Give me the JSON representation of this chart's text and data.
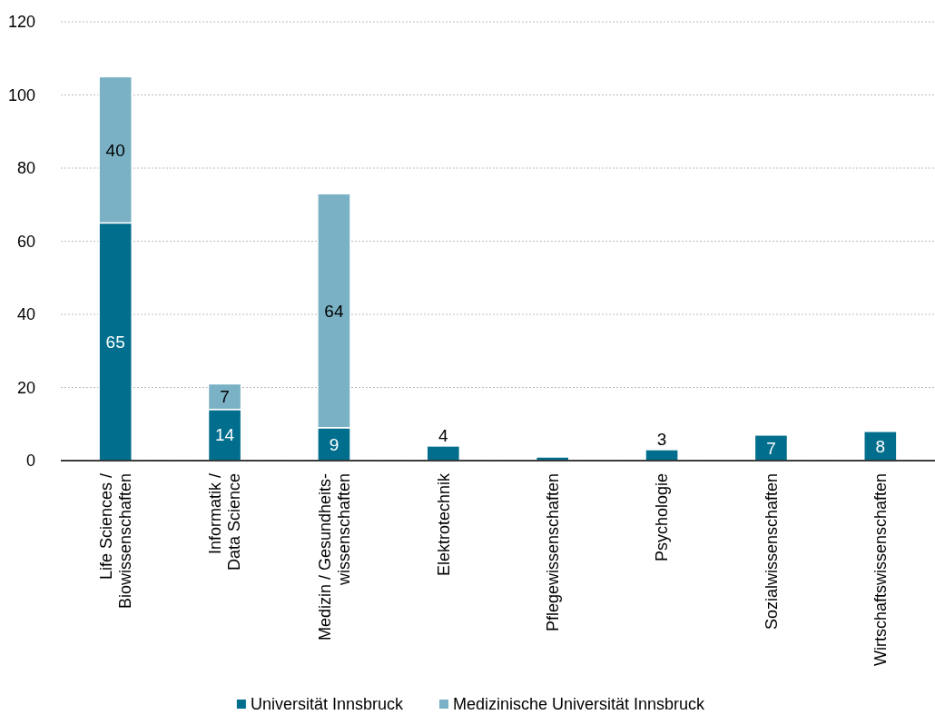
{
  "chart_data": {
    "type": "bar",
    "stacked": true,
    "categories": [
      "Life Sciences /\nBiowissenschaften",
      "Informatik /\nData Science",
      "Medizin / Gesundheits-\nwissenschaften",
      "Elektrotechnik",
      "Pflegewissenschaften",
      "Psychologie",
      "Sozialwissenschaften",
      "Wirtschaftswissenschaften"
    ],
    "series": [
      {
        "name": "Universität Innsbruck",
        "color": "#006e8c",
        "values": [
          65,
          14,
          9,
          4,
          1,
          3,
          7,
          8
        ],
        "value_labels": [
          "65",
          "14",
          "9",
          "4",
          null,
          "3",
          "7",
          "8"
        ]
      },
      {
        "name": "Medizinische Universität Innsbruck",
        "color": "#7ab1c5",
        "values": [
          40,
          7,
          64,
          null,
          null,
          null,
          null,
          null
        ],
        "value_labels": [
          "40",
          "7",
          "64",
          null,
          null,
          null,
          null,
          null
        ]
      }
    ],
    "ylim": [
      0,
      120
    ],
    "yticks": [
      0,
      20,
      40,
      60,
      80,
      100,
      120
    ],
    "grid": "y",
    "legend": "bottom"
  }
}
